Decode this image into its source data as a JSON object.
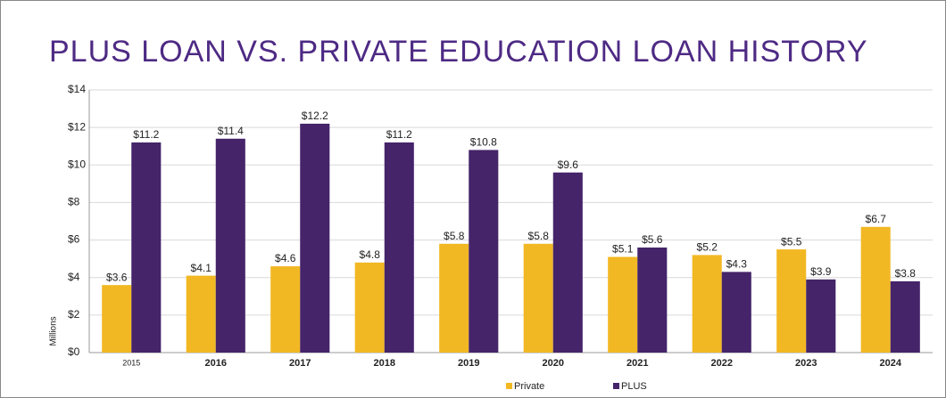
{
  "chart_data": {
    "type": "bar",
    "title": "PLUS LOAN VS. PRIVATE EDUCATION LOAN HISTORY",
    "y_label": "Millions",
    "categories": [
      "2015",
      "2016",
      "2017",
      "2018",
      "2019",
      "2020",
      "2021",
      "2022",
      "2023",
      "2024"
    ],
    "series": [
      {
        "name": "Private",
        "color": "#f2b824",
        "values": [
          3.6,
          4.1,
          4.6,
          4.8,
          5.8,
          5.8,
          5.1,
          5.2,
          5.5,
          6.7
        ],
        "value_labels": [
          "$3.6",
          "$4.1",
          "$4.6",
          "$4.8",
          "$5.8",
          "$5.8",
          "$5.1",
          "$5.2",
          "$5.5",
          "$6.7"
        ]
      },
      {
        "name": "PLUS",
        "color": "#45246a",
        "values": [
          11.2,
          11.4,
          12.2,
          11.2,
          10.8,
          9.6,
          5.6,
          4.3,
          3.9,
          3.8
        ],
        "value_labels": [
          "$11.2",
          "$11.4",
          "$12.2",
          "$11.2",
          "$10.8",
          "$9.6",
          "$5.6",
          "$4.3",
          "$3.9",
          "$3.8"
        ]
      }
    ],
    "ylim": [
      0,
      14
    ],
    "yticks": [
      {
        "value": 0,
        "label": "$0"
      },
      {
        "value": 2,
        "label": "$2"
      },
      {
        "value": 4,
        "label": "$4"
      },
      {
        "value": 6,
        "label": "$6"
      },
      {
        "value": 8,
        "label": "$8"
      },
      {
        "value": 10,
        "label": "$10"
      },
      {
        "value": 12,
        "label": "$12"
      },
      {
        "value": 14,
        "label": "$14"
      }
    ],
    "grid": true,
    "legend": "bottom"
  }
}
